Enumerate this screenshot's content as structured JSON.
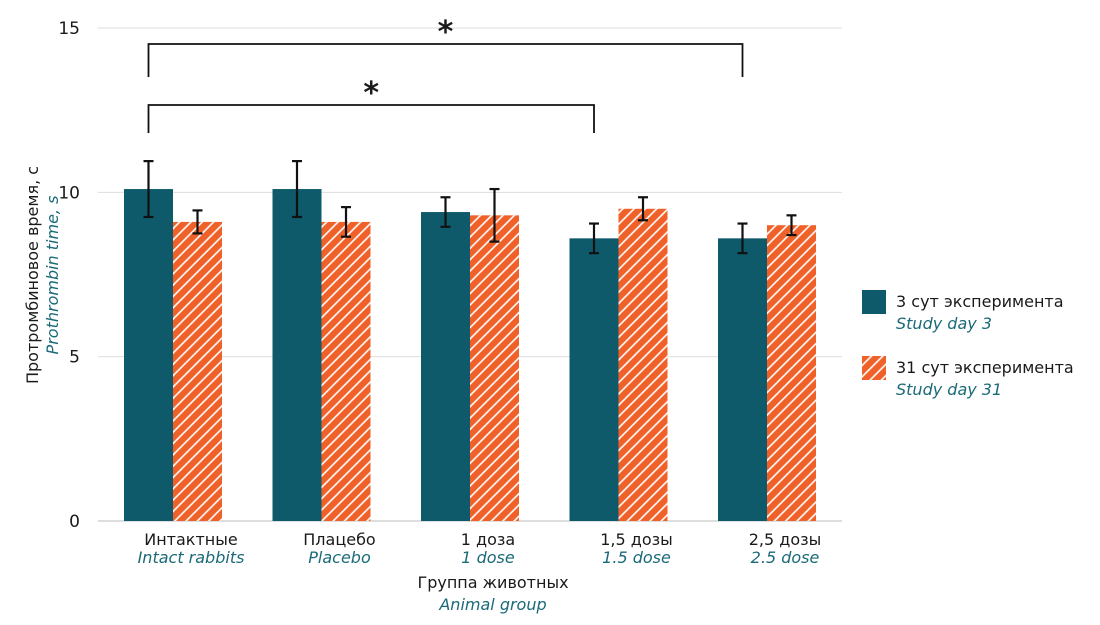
{
  "chart_data": {
    "type": "bar",
    "categories": [
      {
        "ru": "Интактные",
        "en": "Intact rabbits"
      },
      {
        "ru": "Плацебо",
        "en": "Placebo"
      },
      {
        "ru": "1 доза",
        "en": "1 dose"
      },
      {
        "ru": "1,5 дозы",
        "en": "1.5 dose"
      },
      {
        "ru": "2,5 дозы",
        "en": "2.5 dose"
      }
    ],
    "series": [
      {
        "name_ru": "3 сут эксперимента",
        "name_en": "Study day 3",
        "color": "#0e5a6a",
        "pattern": "solid",
        "values": [
          10.1,
          10.1,
          9.4,
          8.6,
          8.6
        ],
        "errors": [
          0.85,
          0.85,
          0.45,
          0.45,
          0.45
        ]
      },
      {
        "name_ru": "31 сут эксперимента",
        "name_en": "Study day 31",
        "color": "#f0612a",
        "pattern": "hatched",
        "values": [
          9.1,
          9.1,
          9.3,
          9.5,
          9.0
        ],
        "errors": [
          0.35,
          0.45,
          0.8,
          0.35,
          0.3
        ]
      }
    ],
    "ylabel_ru": "Протромбиновое время, с",
    "ylabel_en": "Prothrombin time, s",
    "xlabel_ru": "Группа животных",
    "xlabel_en": "Animal group",
    "ylim": [
      0,
      15
    ],
    "yticks": [
      0,
      5,
      10,
      15
    ],
    "grid": "horizontal",
    "legend_position": "right",
    "significance": [
      {
        "from_category": 0,
        "to_category": 4,
        "to_series": 0,
        "label": "*"
      },
      {
        "from_category": 0,
        "to_category": 3,
        "to_series": 0,
        "label": "*"
      }
    ]
  }
}
